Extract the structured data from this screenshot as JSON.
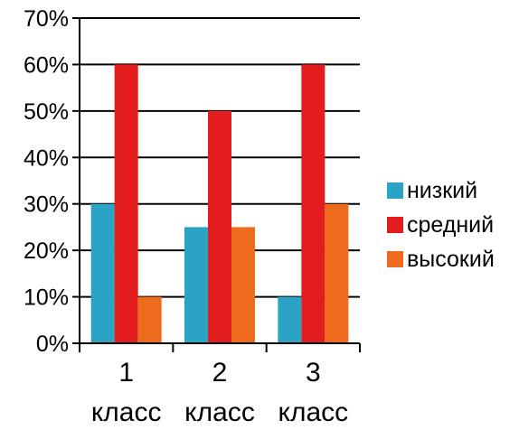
{
  "chart_data": {
    "type": "bar",
    "categories": [
      "1",
      "2",
      "3"
    ],
    "category_subtitle": [
      "класс",
      "класс",
      "класс"
    ],
    "series": [
      {
        "name": "низкий",
        "values": [
          30,
          25,
          10
        ],
        "color": "#2aa3c4"
      },
      {
        "name": "средний",
        "values": [
          60,
          50,
          60
        ],
        "color": "#e31d1d"
      },
      {
        "name": "высокий",
        "values": [
          10,
          25,
          30
        ],
        "color": "#ee6b1d"
      }
    ],
    "yticks": [
      "0%",
      "10%",
      "20%",
      "30%",
      "40%",
      "50%",
      "60%",
      "70%"
    ],
    "ylim": [
      0,
      70
    ],
    "grid": true,
    "legend_position": "right",
    "title": "",
    "xlabel": "",
    "ylabel": ""
  }
}
